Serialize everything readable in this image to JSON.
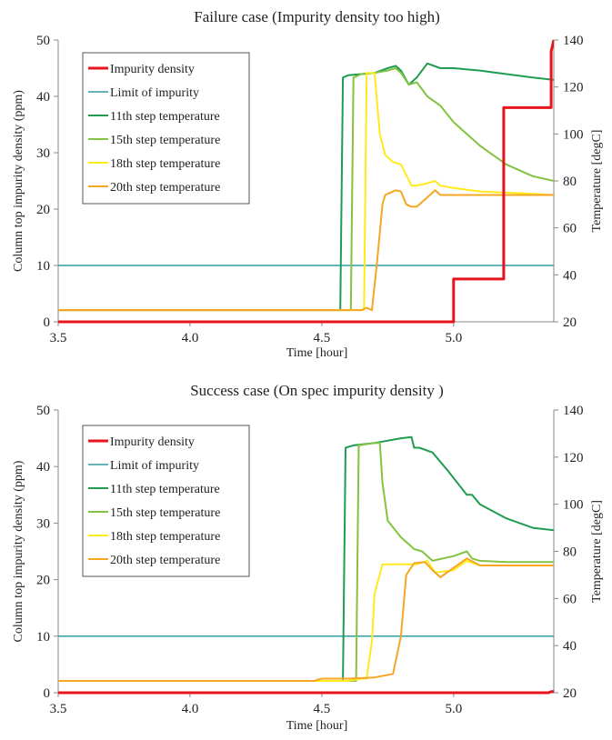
{
  "chart_data": [
    {
      "type": "line",
      "title": "Failure case (Impurity density too high)",
      "xlabel": "Time [hour]",
      "ylabel": "Column top impurity density (ppm)",
      "y2label": "Temperature [degC]",
      "xlim": [
        3.5,
        5.38
      ],
      "ylim": [
        0,
        50
      ],
      "y2lim": [
        20,
        140
      ],
      "xticks": [
        "3.5",
        "4.0",
        "4.5",
        "5.0"
      ],
      "yticks": [
        "0",
        "10",
        "20",
        "30",
        "40",
        "50"
      ],
      "y2ticks": [
        "20",
        "40",
        "60",
        "80",
        "100",
        "120",
        "140"
      ],
      "grid": false,
      "legend_position": "top-left",
      "series": [
        {
          "name": "Impurity density",
          "axis": "left",
          "color": "#e8141b",
          "width": 3,
          "x": [
            3.5,
            5.0,
            5.0,
            5.19,
            5.19,
            5.37,
            5.37,
            5.38
          ],
          "y": [
            0,
            0,
            7.6,
            7.6,
            38,
            38,
            48,
            50
          ]
        },
        {
          "name": "Limit of impurity",
          "axis": "left",
          "color": "#2f9ea3",
          "width": 1.5,
          "x": [
            3.5,
            5.38
          ],
          "y": [
            10,
            10
          ]
        },
        {
          "name": "11th step temperature",
          "axis": "right",
          "color": "#1f9c4f",
          "width": 2,
          "x": [
            3.5,
            4.57,
            4.58,
            4.6,
            4.65,
            4.7,
            4.75,
            4.78,
            4.8,
            4.83,
            4.86,
            4.9,
            4.95,
            5.0,
            5.1,
            5.2,
            5.3,
            5.38
          ],
          "y": [
            25,
            25,
            124,
            125,
            125.5,
            126,
            128,
            129,
            127,
            121,
            124,
            130,
            128,
            128,
            127,
            125.5,
            124,
            123
          ]
        },
        {
          "name": "15th step temperature",
          "axis": "right",
          "color": "#82c341",
          "width": 2,
          "x": [
            3.5,
            4.61,
            4.62,
            4.65,
            4.7,
            4.75,
            4.78,
            4.8,
            4.83,
            4.86,
            4.9,
            4.95,
            5.0,
            5.1,
            5.2,
            5.3,
            5.38
          ],
          "y": [
            25,
            25,
            124,
            125.5,
            126,
            127,
            128,
            126,
            121,
            122,
            116,
            112,
            105,
            95,
            87,
            82,
            80
          ]
        },
        {
          "name": "18th step temperature",
          "axis": "right",
          "color": "#ffeb1a",
          "width": 2,
          "x": [
            3.5,
            4.66,
            4.67,
            4.7,
            4.72,
            4.74,
            4.77,
            4.8,
            4.84,
            4.86,
            4.9,
            4.93,
            4.95,
            5.0,
            5.1,
            5.2,
            5.3,
            5.38
          ],
          "y": [
            25,
            25,
            126,
            126,
            100,
            91,
            88,
            87,
            78,
            78,
            79,
            80,
            78,
            77,
            75.5,
            75,
            74.5,
            74
          ]
        },
        {
          "name": "20th step temperature",
          "axis": "right",
          "color": "#f5a623",
          "width": 2,
          "x": [
            3.5,
            4.65,
            4.67,
            4.69,
            4.71,
            4.73,
            4.74,
            4.76,
            4.78,
            4.8,
            4.82,
            4.84,
            4.86,
            4.9,
            4.93,
            4.95,
            5.0,
            5.1,
            5.2,
            5.3,
            5.38
          ],
          "y": [
            25,
            25,
            26,
            25,
            46,
            70,
            74,
            75,
            76,
            75.5,
            70,
            69,
            69,
            73,
            76,
            74,
            74,
            74,
            74,
            74,
            74
          ]
        }
      ]
    },
    {
      "type": "line",
      "title": "Success case (On spec impurity density )",
      "xlabel": "Time [hour]",
      "ylabel": "Column top impurity density (ppm)",
      "y2label": "Temperature [degC]",
      "xlim": [
        3.5,
        5.38
      ],
      "ylim": [
        0,
        50
      ],
      "y2lim": [
        20,
        140
      ],
      "xticks": [
        "3.5",
        "4.0",
        "4.5",
        "5.0"
      ],
      "yticks": [
        "0",
        "10",
        "20",
        "30",
        "40",
        "50"
      ],
      "y2ticks": [
        "20",
        "40",
        "60",
        "80",
        "100",
        "120",
        "140"
      ],
      "grid": false,
      "legend_position": "top-left",
      "series": [
        {
          "name": "Impurity density",
          "axis": "left",
          "color": "#e8141b",
          "width": 3,
          "x": [
            3.5,
            5.36,
            5.37,
            5.38
          ],
          "y": [
            0,
            0,
            0.2,
            0.2
          ]
        },
        {
          "name": "Limit of impurity",
          "axis": "left",
          "color": "#2f9ea3",
          "width": 1.5,
          "x": [
            3.5,
            5.38
          ],
          "y": [
            10,
            10
          ]
        },
        {
          "name": "11th step temperature",
          "axis": "right",
          "color": "#1f9c4f",
          "width": 2,
          "x": [
            3.5,
            4.58,
            4.59,
            4.62,
            4.7,
            4.8,
            4.84,
            4.85,
            4.87,
            4.92,
            4.98,
            5.05,
            5.07,
            5.1,
            5.2,
            5.3,
            5.38
          ],
          "y": [
            25,
            25,
            124,
            125,
            126,
            128,
            128.5,
            124,
            124,
            122,
            114,
            104,
            104,
            100,
            94,
            90,
            89
          ]
        },
        {
          "name": "15th step temperature",
          "axis": "right",
          "color": "#82c341",
          "width": 2,
          "x": [
            3.5,
            4.63,
            4.64,
            4.7,
            4.72,
            4.73,
            4.75,
            4.8,
            4.85,
            4.88,
            4.92,
            5.0,
            5.05,
            5.07,
            5.1,
            5.2,
            5.3,
            5.38
          ],
          "y": [
            25,
            25,
            125,
            126,
            126,
            109,
            93,
            86,
            81,
            80,
            76,
            78,
            80,
            77,
            76,
            75.5,
            75.5,
            75.5
          ]
        },
        {
          "name": "18th step temperature",
          "axis": "right",
          "color": "#ffeb1a",
          "width": 2,
          "x": [
            3.5,
            4.6,
            4.65,
            4.67,
            4.69,
            4.7,
            4.73,
            4.8,
            4.86,
            4.9,
            4.93,
            5.0,
            5.05,
            5.1,
            5.2,
            5.3,
            5.38
          ],
          "y": [
            25,
            25,
            26,
            26,
            42,
            62,
            74.5,
            74.5,
            74.5,
            76,
            71,
            72,
            76,
            74,
            74,
            74,
            74
          ]
        },
        {
          "name": "20th step temperature",
          "axis": "right",
          "color": "#f5a623",
          "width": 2,
          "x": [
            3.5,
            4.47,
            4.5,
            4.6,
            4.7,
            4.77,
            4.8,
            4.82,
            4.85,
            4.89,
            4.92,
            4.95,
            5.0,
            5.05,
            5.1,
            5.2,
            5.3,
            5.38
          ],
          "y": [
            25,
            25,
            26,
            26,
            26.5,
            28,
            44,
            70,
            75,
            75.5,
            72,
            69,
            73,
            77,
            74,
            74,
            74,
            74
          ]
        }
      ]
    }
  ]
}
